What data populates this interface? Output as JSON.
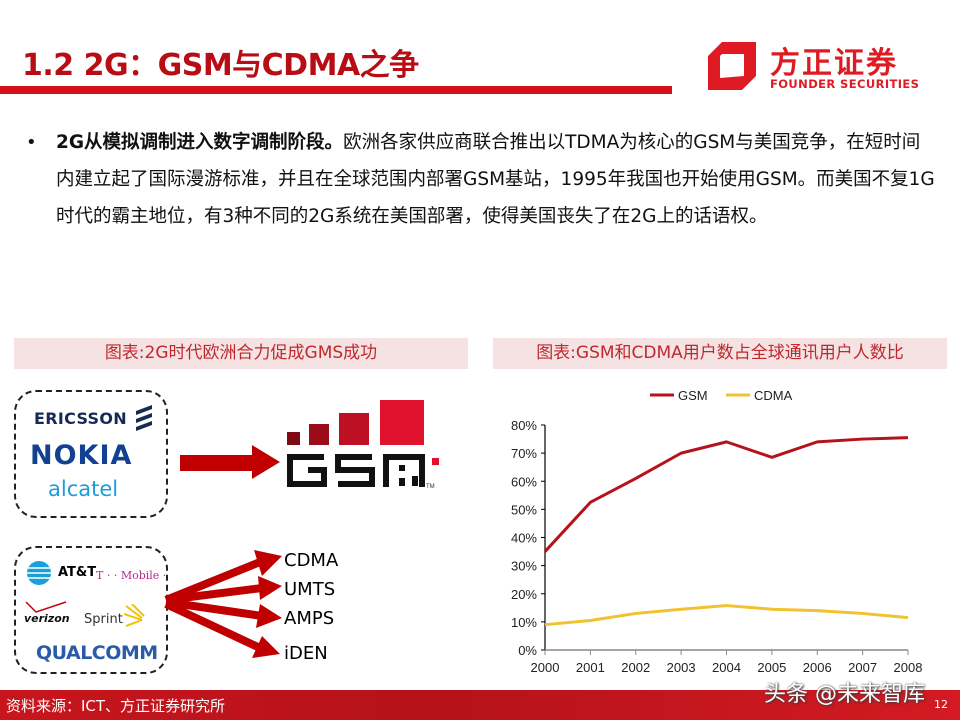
{
  "header": {
    "title": "1.2 2G：GSM与CDMA之争",
    "logo_cn": "方正证券",
    "logo_en": "FOUNDER SECURITIES"
  },
  "bullet": {
    "dot": "•",
    "bold": "2G从模拟调制进入数字调制阶段。",
    "text": "欧洲各家供应商联合推出以TDMA为核心的GSM与美国竞争，在短时间内建立起了国际漫游标准，并且在全球范围内部署GSM基站，1995年我国也开始使用GSM。而美国不复1G时代的霸主地位，有3种不同的2G系统在美国部署，使得美国丧失了在2G上的话语权。"
  },
  "left_figure": {
    "caption": "图表:2G时代欧洲合力促成GMS成功",
    "europe_logos": [
      "ERICSSON",
      "NOKIA",
      "alcatel"
    ],
    "us_logos": [
      "AT&T",
      "T · · Mobile ·",
      "verizon",
      "Sprint",
      "QUALCOMM"
    ],
    "gsm_logo_text": "GSM",
    "gsm_tm": "TM",
    "technologies": [
      "CDMA",
      "UMTS",
      "AMPS",
      "iDEN"
    ],
    "arrow_color": "#c00000"
  },
  "right_figure": {
    "caption": "图表:GSM和CDMA用户数占全球通讯用户人数比"
  },
  "chart_data": {
    "type": "line",
    "title": "图表:GSM和CDMA用户数占全球通讯用户人数比",
    "xlabel": "",
    "ylabel": "",
    "x": [
      "2000",
      "2001",
      "2002",
      "2003",
      "2004",
      "2005",
      "2006",
      "2007",
      "2008"
    ],
    "series": [
      {
        "name": "GSM",
        "color": "#b5121b",
        "values": [
          35,
          52.5,
          61,
          70,
          74,
          68.5,
          74,
          75,
          75.5
        ]
      },
      {
        "name": "CDMA",
        "color": "#f2c12e",
        "values": [
          9,
          10.5,
          13,
          14.5,
          15.8,
          14.5,
          14,
          13,
          11.5
        ]
      }
    ],
    "yticks": [
      "0%",
      "10%",
      "20%",
      "30%",
      "40%",
      "50%",
      "60%",
      "70%",
      "80%"
    ],
    "ylim": [
      0,
      80
    ],
    "grid": false,
    "legend_position": "top"
  },
  "footer": {
    "source": "资料来源：ICT、方正证券研究所",
    "page": "12",
    "watermark": "头条 @未来智库"
  }
}
